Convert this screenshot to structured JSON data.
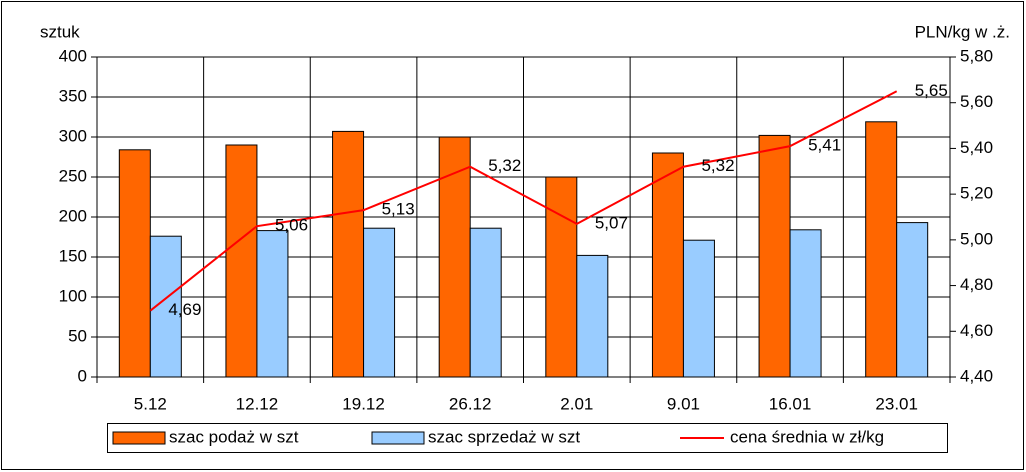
{
  "chart_data": {
    "type": "bar",
    "y_label": "sztuk",
    "y2_label": "PLN/kg w .ż.",
    "categories": [
      "5.12",
      "12.12",
      "19.12",
      "26.12",
      "2.01",
      "9.01",
      "16.01",
      "23.01"
    ],
    "series": [
      {
        "name": "szac podaż w szt",
        "color": "#ff6600",
        "type": "bar",
        "values": [
          284,
          290,
          307,
          300,
          250,
          280,
          302,
          319
        ]
      },
      {
        "name": "szac sprzedaż w szt",
        "color": "#99ccff",
        "type": "bar",
        "values": [
          176,
          183,
          186,
          186,
          152,
          171,
          184,
          193
        ]
      },
      {
        "name": "cena średnia w zł/kg",
        "color": "#ff0000",
        "type": "line",
        "axis": "y2",
        "values": [
          4.69,
          5.06,
          5.13,
          5.32,
          5.07,
          5.32,
          5.41,
          5.65
        ],
        "value_labels": [
          "4,69",
          "5,06",
          "5,13",
          "5,32",
          "5,07",
          "5,32",
          "5,41",
          "5,65"
        ]
      }
    ],
    "ylim": [
      0,
      400
    ],
    "yticks": [
      0,
      50,
      100,
      150,
      200,
      250,
      300,
      350,
      400
    ],
    "y2lim": [
      4.4,
      5.8
    ],
    "y2ticks": [
      {
        "value": 4.4,
        "label": "4,40"
      },
      {
        "value": 4.6,
        "label": "4,60"
      },
      {
        "value": 4.8,
        "label": "4,80"
      },
      {
        "value": 5.0,
        "label": "5,00"
      },
      {
        "value": 5.2,
        "label": "5,20"
      },
      {
        "value": 5.4,
        "label": "5,40"
      },
      {
        "value": 5.6,
        "label": "5,60"
      },
      {
        "value": 5.8,
        "label": "5,80"
      }
    ],
    "grid": true,
    "legend": "bottom"
  }
}
